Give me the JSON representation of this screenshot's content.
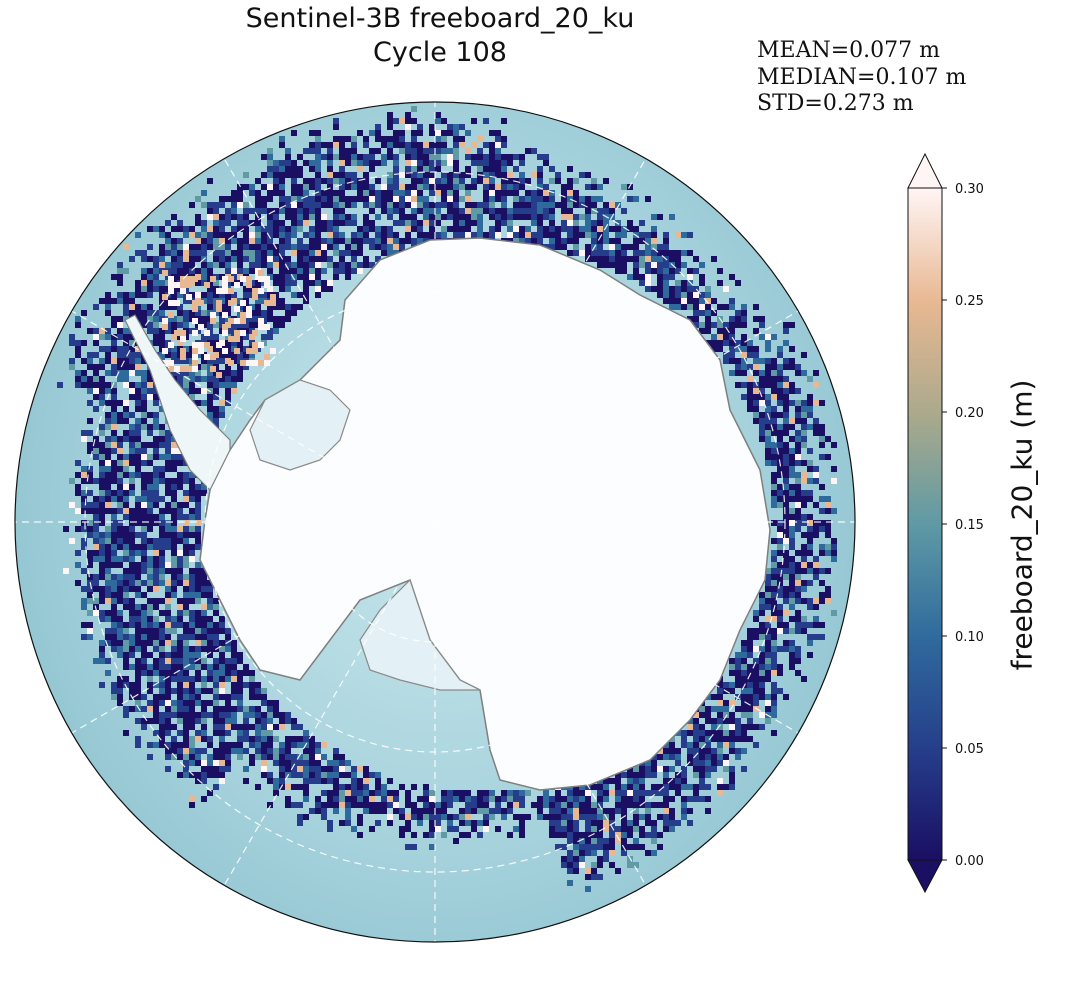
{
  "title": {
    "line1": "Sentinel-3B freeboard_20_ku",
    "line2": "Cycle 108"
  },
  "stats": {
    "mean": "MEAN=0.077 m",
    "median": "MEDIAN=0.107 m",
    "std": "STD=0.273 m"
  },
  "colorbar": {
    "label": "freeboard_20_ku (m)",
    "ticks": [
      "0.00",
      "0.05",
      "0.10",
      "0.15",
      "0.20",
      "0.25",
      "0.30"
    ],
    "min": 0.0,
    "max": 0.3,
    "extend": "both",
    "colors": [
      "#1a0f63",
      "#253d8a",
      "#2f6a9d",
      "#5f9aa5",
      "#a9a98c",
      "#e8b892",
      "#fff5f5"
    ]
  },
  "map": {
    "projection": "south-polar-stereographic",
    "ocean_color": "#9fcdd8",
    "land_color": "#ffffff",
    "graticule": "dashed-white"
  }
}
